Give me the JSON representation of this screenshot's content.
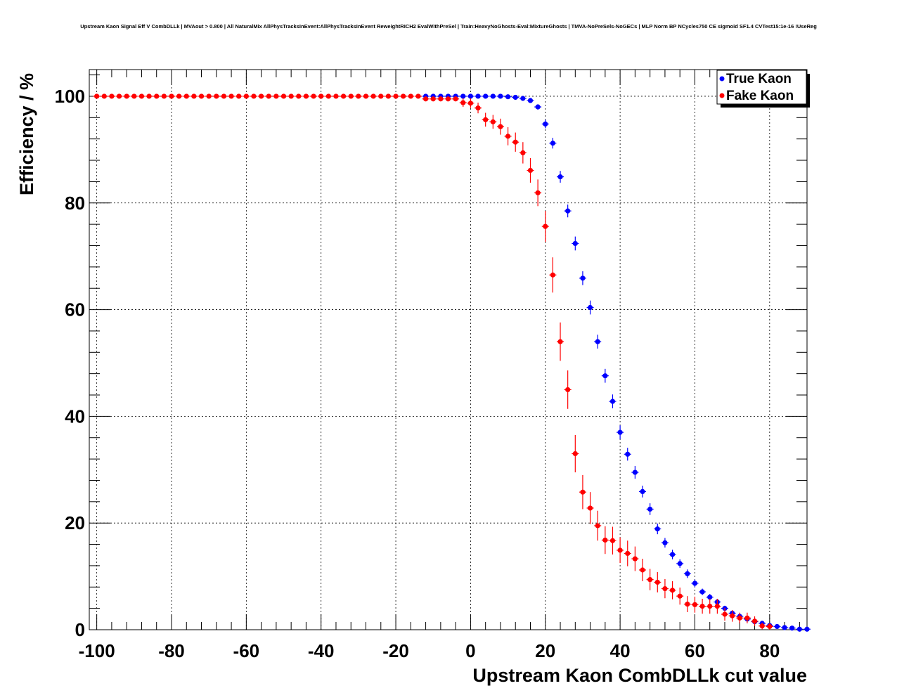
{
  "title": "Upstream Kaon Signal Eff V CombDLLk | MVAout > 0.800 | All NaturalMix AllPhysTracksInEvent:AllPhysTracksInEvent ReweightRICH2 EvalWithPreSel | Train:HeavyNoGhosts-Eval:MixtureGhosts | TMVA-NoPreSels-NoGECs | MLP Norm BP NCycles750 CE sigmoid SF1.4 CVTest15:1e-16 !UseReg",
  "chart_data": {
    "type": "scatter",
    "title": "Upstream Kaon Signal Eff V CombDLLk | MVAout > 0.800 | All NaturalMix AllPhysTracksInEvent:AllPhysTracksInEvent ReweightRICH2 EvalWithPreSel | Train:HeavyNoGhosts-Eval:MixtureGhosts | TMVA-NoPreSels-NoGECs | MLP Norm BP NCycles750 CE sigmoid SF1.4 CVTest15:1e-16 !UseReg",
    "xlabel": "Upstream Kaon CombDLLk cut value",
    "ylabel": "Efficiency / %",
    "xlim": [
      -102,
      90
    ],
    "ylim": [
      0,
      105
    ],
    "xticks": [
      -100,
      -80,
      -60,
      -40,
      -20,
      0,
      20,
      40,
      60,
      80
    ],
    "yticks": [
      0,
      20,
      40,
      60,
      80,
      100
    ],
    "grid": true,
    "legend_position": "top-right",
    "series": [
      {
        "name": "True Kaon",
        "color": "#0000ff",
        "x": [
          -12,
          -10,
          -8,
          -6,
          -4,
          -2,
          0,
          2,
          4,
          6,
          8,
          10,
          12,
          14,
          16,
          18,
          20,
          22,
          24,
          26,
          28,
          30,
          32,
          34,
          36,
          38,
          40,
          42,
          44,
          46,
          48,
          50,
          52,
          54,
          56,
          58,
          60,
          62,
          64,
          66,
          68,
          70,
          72,
          74,
          76,
          78,
          80,
          82,
          84,
          86,
          88,
          90
        ],
        "y": [
          100,
          100,
          100,
          100,
          100,
          100,
          100,
          100,
          100,
          100,
          100,
          99.9,
          99.8,
          99.6,
          99.2,
          98.0,
          94.8,
          91.2,
          84.9,
          78.5,
          72.4,
          65.9,
          60.4,
          54.0,
          47.6,
          42.8,
          37.0,
          32.9,
          29.5,
          25.9,
          22.6,
          18.9,
          16.3,
          14.1,
          12.4,
          10.5,
          8.7,
          7.1,
          6.1,
          5.2,
          4.0,
          3.1,
          2.5,
          2.0,
          1.5,
          1.2,
          0.8,
          0.6,
          0.4,
          0.3,
          0.1,
          0.1
        ],
        "yerr": [
          0,
          0,
          0,
          0,
          0,
          0,
          0,
          0,
          0,
          0,
          0,
          0.1,
          0.1,
          0.2,
          0.3,
          0.5,
          0.8,
          1.0,
          1.1,
          1.2,
          1.3,
          1.3,
          1.3,
          1.3,
          1.3,
          1.3,
          1.3,
          1.2,
          1.2,
          1.1,
          1.1,
          1.0,
          0.9,
          0.9,
          0.8,
          0.8,
          0.7,
          0.6,
          0.6,
          0.5,
          0.5,
          0.4,
          0.4,
          0.3,
          0.3,
          0.3,
          0.2,
          0.2,
          0.2,
          0.1,
          0.1,
          0.1
        ]
      },
      {
        "name": "Fake Kaon",
        "color": "#ff0000",
        "x": [
          -100,
          -98,
          -96,
          -94,
          -92,
          -90,
          -88,
          -86,
          -84,
          -82,
          -80,
          -78,
          -76,
          -74,
          -72,
          -70,
          -68,
          -66,
          -64,
          -62,
          -60,
          -58,
          -56,
          -54,
          -52,
          -50,
          -48,
          -46,
          -44,
          -42,
          -40,
          -38,
          -36,
          -34,
          -32,
          -30,
          -28,
          -26,
          -24,
          -22,
          -20,
          -18,
          -16,
          -14,
          -12,
          -10,
          -8,
          -6,
          -4,
          -2,
          0,
          2,
          4,
          6,
          8,
          10,
          12,
          14,
          16,
          18,
          20,
          22,
          24,
          26,
          28,
          30,
          32,
          34,
          36,
          38,
          40,
          42,
          44,
          46,
          48,
          50,
          52,
          54,
          56,
          58,
          60,
          62,
          64,
          66,
          68,
          70,
          72,
          74,
          76,
          78,
          80
        ],
        "y": [
          100,
          100,
          100,
          100,
          100,
          100,
          100,
          100,
          100,
          100,
          100,
          100,
          100,
          100,
          100,
          100,
          100,
          100,
          100,
          100,
          100,
          100,
          100,
          100,
          100,
          100,
          100,
          100,
          100,
          100,
          100,
          100,
          100,
          100,
          100,
          100,
          100,
          100,
          100,
          100,
          100,
          100,
          100,
          100,
          99.5,
          99.5,
          99.5,
          99.5,
          99.5,
          98.8,
          98.7,
          97.8,
          95.6,
          95.2,
          94.3,
          92.5,
          91.4,
          89.4,
          86.1,
          81.9,
          75.6,
          66.5,
          54.0,
          45.0,
          33.0,
          25.8,
          22.8,
          19.5,
          16.8,
          16.7,
          14.9,
          14.3,
          13.3,
          11.2,
          9.4,
          8.9,
          7.7,
          7.4,
          6.3,
          4.8,
          4.7,
          4.4,
          4.4,
          4.4,
          2.9,
          2.6,
          2.2,
          2.2,
          1.6,
          0.7,
          0.6
        ],
        "yerr": [
          0,
          0,
          0,
          0,
          0,
          0,
          0,
          0,
          0,
          0,
          0,
          0,
          0,
          0,
          0,
          0,
          0,
          0,
          0,
          0,
          0,
          0,
          0,
          0,
          0,
          0,
          0,
          0,
          0,
          0,
          0,
          0,
          0,
          0,
          0,
          0,
          0,
          0,
          0,
          0,
          0,
          0,
          0,
          0,
          0.4,
          0.4,
          0.4,
          0.4,
          0.4,
          0.8,
          0.9,
          1.0,
          1.3,
          1.3,
          1.5,
          1.7,
          1.8,
          2.0,
          2.3,
          2.5,
          2.9,
          3.3,
          3.6,
          3.6,
          3.5,
          3.2,
          3.0,
          2.8,
          2.6,
          2.6,
          2.4,
          2.4,
          2.3,
          2.1,
          2.0,
          1.9,
          1.8,
          1.7,
          1.6,
          1.5,
          1.5,
          1.4,
          1.4,
          1.4,
          1.2,
          1.1,
          1.0,
          1.0,
          0.9,
          0.6,
          0.6
        ]
      }
    ]
  }
}
